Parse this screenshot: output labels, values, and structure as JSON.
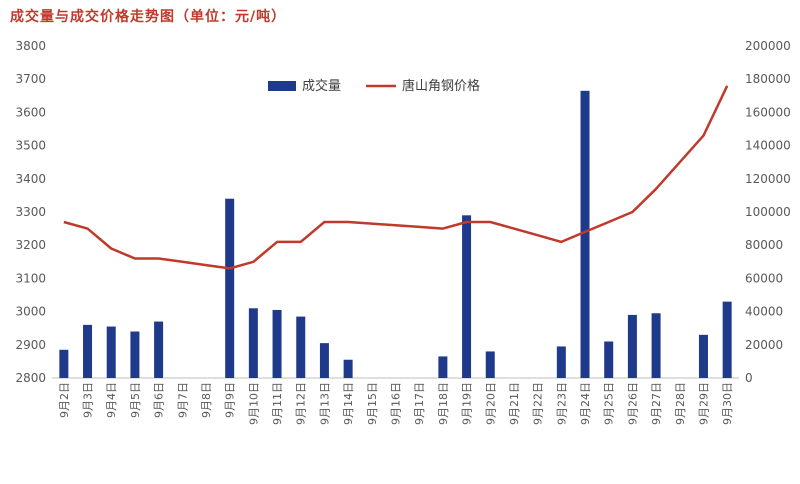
{
  "chart_data": {
    "type": "bar",
    "title": "成交量与成交价格走势图（单位：元/吨）",
    "categories": [
      "9月2日",
      "9月3日",
      "9月4日",
      "9月5日",
      "9月6日",
      "9月7日",
      "9月8日",
      "9月9日",
      "9月10日",
      "9月11日",
      "9月12日",
      "9月13日",
      "9月14日",
      "9月15日",
      "9月16日",
      "9月17日",
      "9月18日",
      "9月19日",
      "9月20日",
      "9月21日",
      "9月22日",
      "9月23日",
      "9月24日",
      "9月25日",
      "9月26日",
      "9月27日",
      "9月28日",
      "9月29日",
      "9月30日"
    ],
    "y_left": {
      "min": 2800,
      "max": 3800,
      "ticks": [
        "2800",
        "2900",
        "3000",
        "3100",
        "3200",
        "3300",
        "3400",
        "3500",
        "3600",
        "3700",
        "3800"
      ]
    },
    "y_right": {
      "min": 0,
      "max": 200000,
      "ticks": [
        "0",
        "20000",
        "40000",
        "60000",
        "80000",
        "100000",
        "120000",
        "140000",
        "160000",
        "180000",
        "200000"
      ]
    },
    "legend_position": "top-center",
    "grid": false,
    "series": [
      {
        "name": "成交量",
        "type": "bar",
        "axis": "right",
        "color": "#1f3a8a",
        "values": [
          17000,
          32000,
          31000,
          28000,
          34000,
          null,
          null,
          108000,
          42000,
          41000,
          37000,
          21000,
          11000,
          null,
          null,
          null,
          13000,
          98000,
          16000,
          null,
          null,
          19000,
          173000,
          22000,
          38000,
          39000,
          null,
          26000,
          46000
        ]
      },
      {
        "name": "唐山角钢价格",
        "type": "line",
        "axis": "left",
        "color": "#c0392b",
        "values": [
          3270,
          3250,
          3190,
          3160,
          3160,
          3150,
          3140,
          3130,
          3150,
          3210,
          3210,
          3270,
          3270,
          3265,
          3260,
          3255,
          3250,
          3270,
          3270,
          3250,
          3230,
          3210,
          3240,
          3270,
          3300,
          3370,
          3450,
          3530,
          3680
        ]
      }
    ]
  }
}
